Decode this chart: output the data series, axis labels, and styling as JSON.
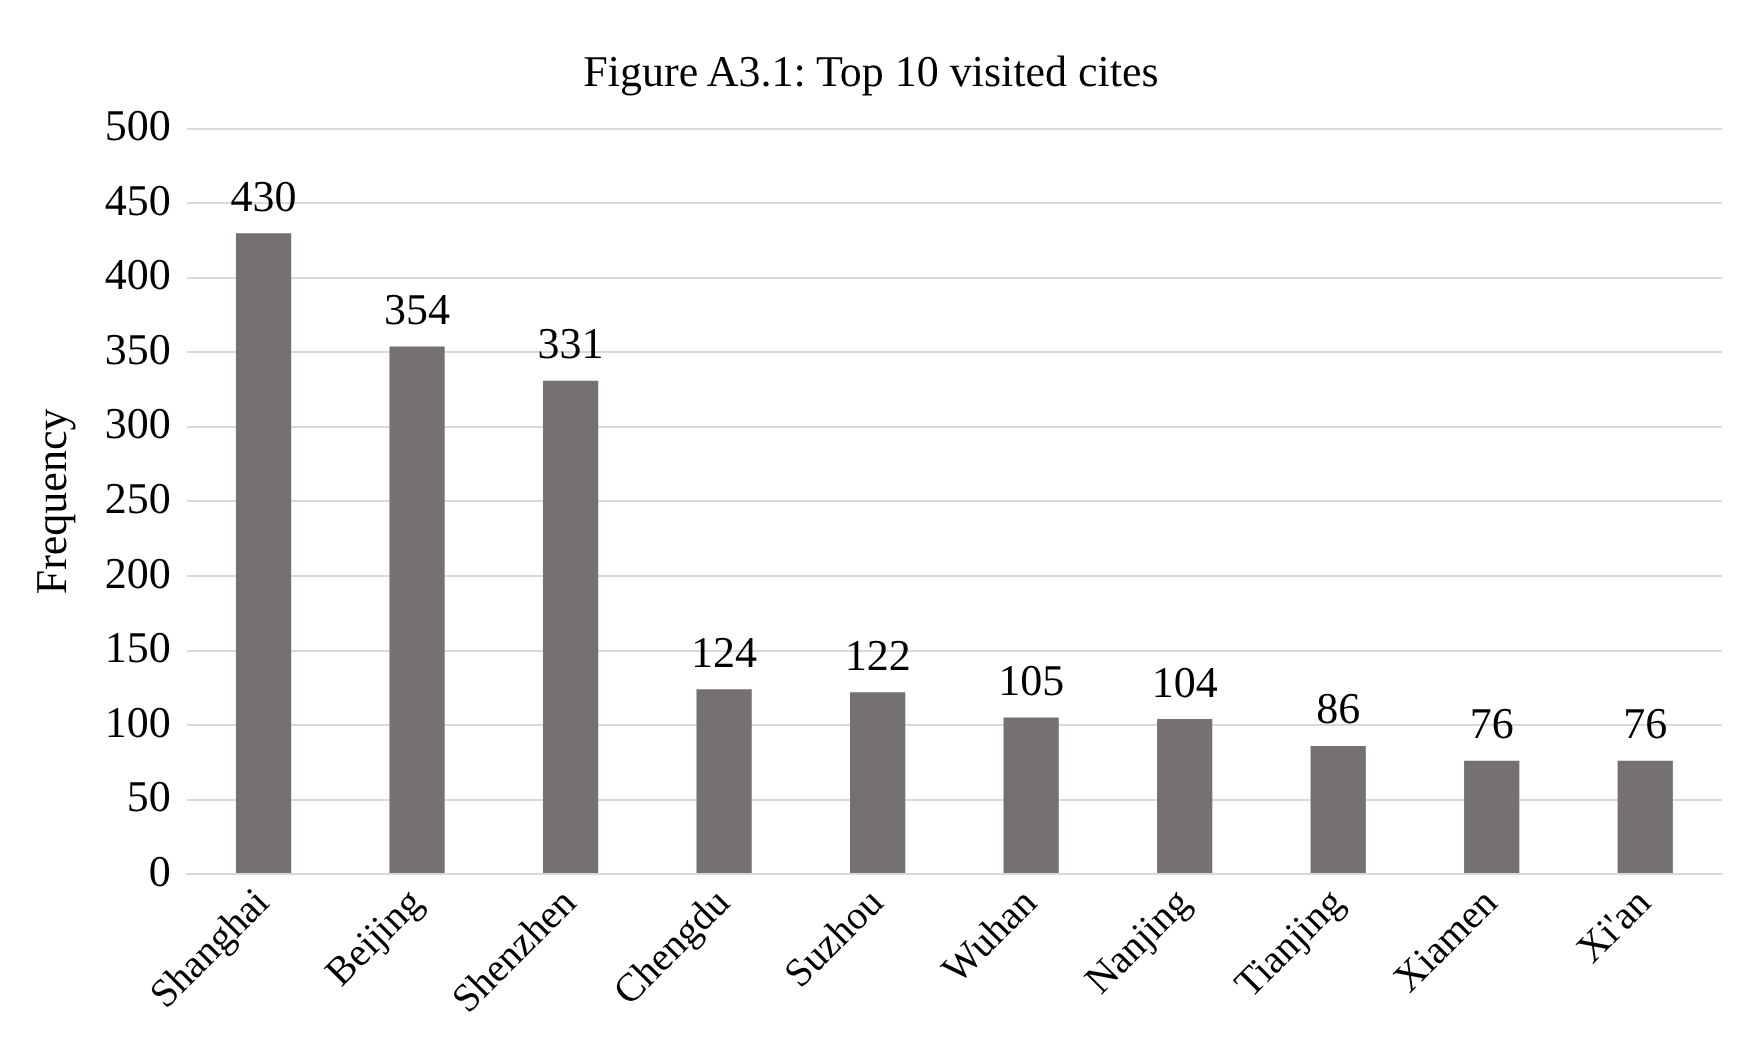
{
  "chart_data": {
    "type": "bar",
    "title": "Figure A3.1: Top 10 visited cites",
    "ylabel": "Frequency",
    "categories": [
      "Shanghai",
      "Beijing",
      "Shenzhen",
      "Chengdu",
      "Suzhou",
      "Wuhan",
      "Nanjing",
      "Tianjing",
      "Xiamen",
      "Xi'an"
    ],
    "values": [
      430,
      354,
      331,
      124,
      122,
      105,
      104,
      86,
      76,
      76
    ],
    "color": "#767171",
    "ylim": [
      0,
      500
    ],
    "yticks": [
      0,
      50,
      100,
      150,
      200,
      250,
      300,
      350,
      400,
      450,
      500
    ],
    "grid": "y",
    "data_labels": true,
    "legend": false
  }
}
